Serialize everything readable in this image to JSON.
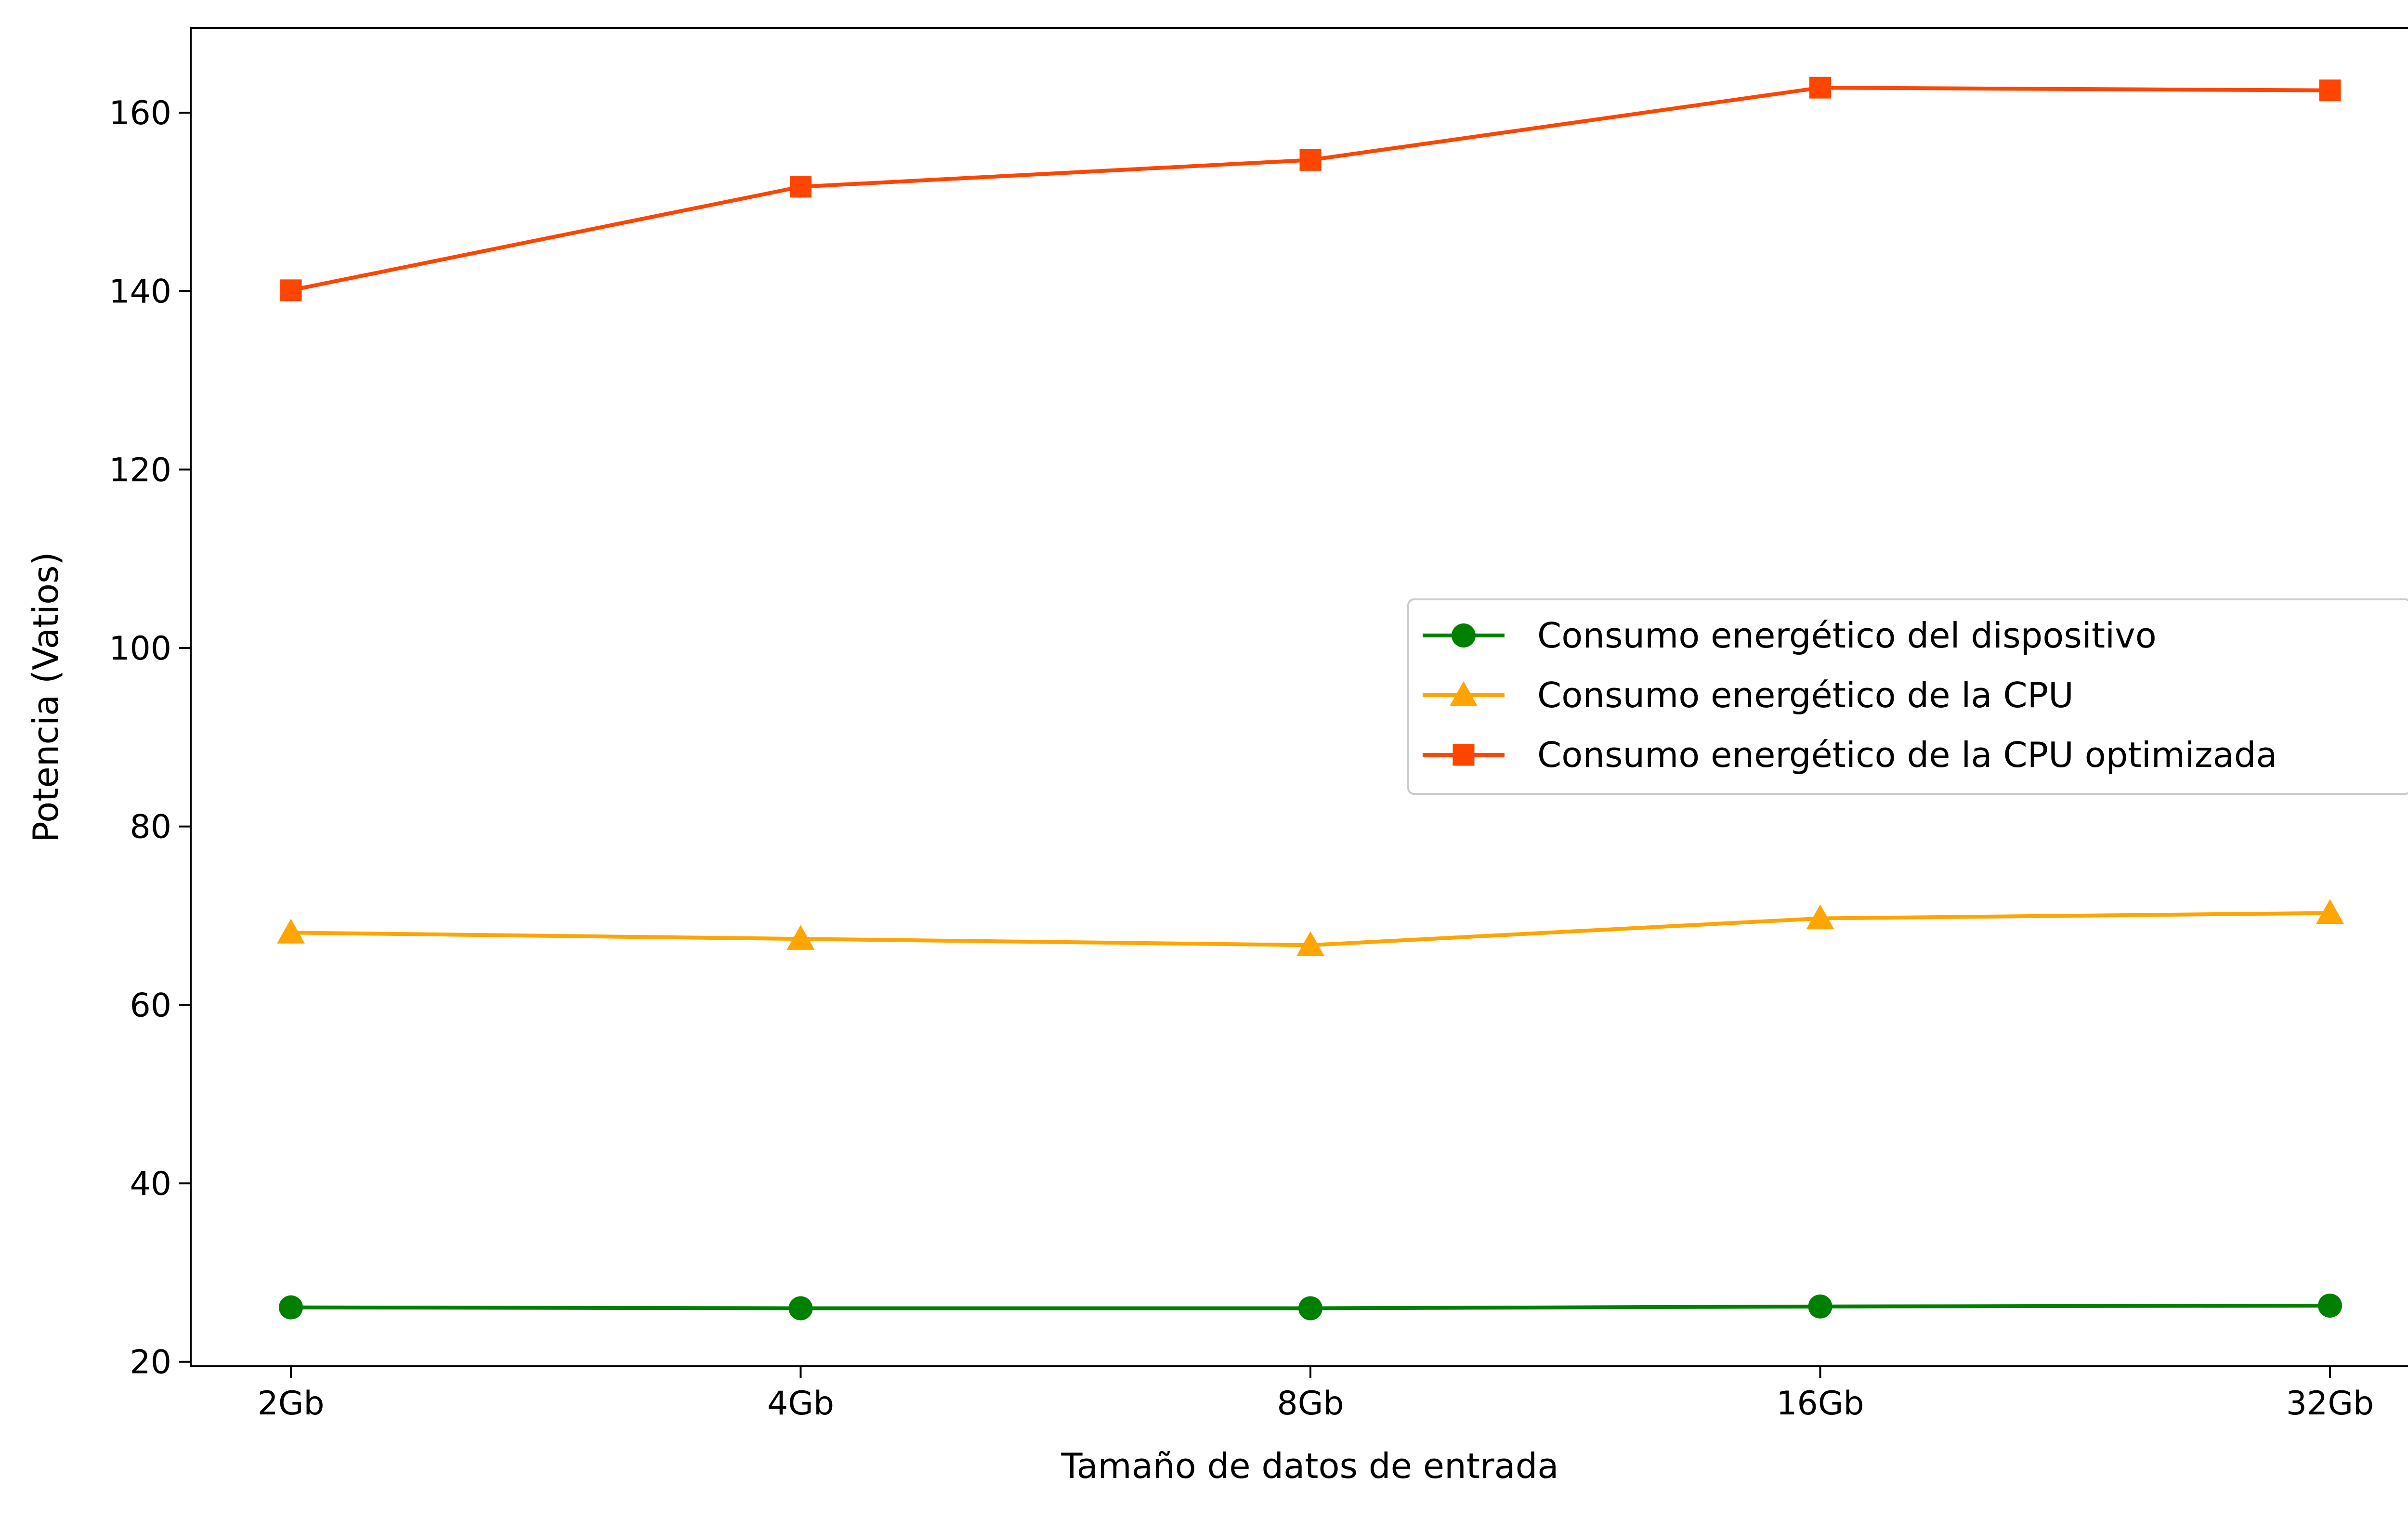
{
  "chart_data": {
    "type": "line",
    "title": "",
    "xlabel": "Tamaño de datos de entrada",
    "ylabel": "Potencia (Vatios)",
    "categories": [
      "2Gb",
      "4Gb",
      "8Gb",
      "16Gb",
      "32Gb"
    ],
    "ylim": [
      19.5,
      169.5
    ],
    "yticks": [
      20,
      40,
      60,
      80,
      100,
      120,
      140,
      160
    ],
    "grid": false,
    "legend_position": "center-right",
    "series": [
      {
        "name": "Consumo energético del dispositivo",
        "color": "#008000",
        "marker": "circle",
        "values": [
          26.1,
          26.0,
          26.0,
          26.2,
          26.3
        ]
      },
      {
        "name": "Consumo energético de la CPU",
        "color": "#FFA500",
        "marker": "triangle",
        "values": [
          68.1,
          67.4,
          66.7,
          69.7,
          70.3
        ]
      },
      {
        "name": "Consumo energético de la CPU optimizada",
        "color": "#FF4500",
        "marker": "square",
        "values": [
          140.1,
          151.7,
          154.7,
          162.8,
          162.5
        ]
      }
    ]
  }
}
